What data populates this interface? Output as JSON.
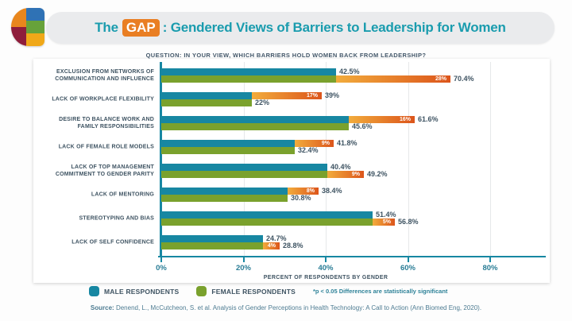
{
  "header": {
    "title_prefix": "The",
    "title_highlight": "GAP",
    "title_suffix": ": Gendered Views of Barriers to Leadership for Women"
  },
  "question": "QUESTION: IN YOUR VIEW, WHICH BARRIERS HOLD WOMEN BACK FROM LEADERSHIP?",
  "chart_data": {
    "type": "bar",
    "orientation": "horizontal",
    "title": "The GAP: Gendered Views of Barriers to Leadership for Women",
    "xlabel": "PERCENT OF RESPONDENTS BY GENDER",
    "xlim": [
      0,
      80
    ],
    "x_ticks": [
      "0%",
      "20%",
      "40%",
      "60%",
      "80%"
    ],
    "grid": true,
    "legend_position": "bottom",
    "series_names": [
      "MALE RESPONDENTS",
      "FEMALE RESPONDENTS"
    ],
    "gap_note": "Orange segment shows the rounded gap between male and female values, drawn on the longer bar",
    "categories": [
      {
        "label": "EXCLUSION FROM NETWORKS OF\nCOMMUNICATION AND INFLUENCE",
        "male": 42.5,
        "female": 70.4,
        "male_label": "42.5%",
        "female_label": "70.4%",
        "gap": 28,
        "gap_label": "28%"
      },
      {
        "label": "LACK OF WORKPLACE FLEXIBILITY",
        "male": 39,
        "female": 22,
        "male_label": "39%",
        "female_label": "22%",
        "gap": 17,
        "gap_label": "17%"
      },
      {
        "label": "DESIRE TO BALANCE WORK AND\nFAMILY RESPONSIBILITIES",
        "male": 61.6,
        "female": 45.6,
        "male_label": "61.6%",
        "female_label": "45.6%",
        "gap": 16,
        "gap_label": "16%"
      },
      {
        "label": "LACK OF FEMALE ROLE MODELS",
        "male": 41.8,
        "female": 32.4,
        "male_label": "41.8%",
        "female_label": "32.4%",
        "gap": 9,
        "gap_label": "9%"
      },
      {
        "label": "LACK OF TOP MANAGEMENT\nCOMMITMENT TO GENDER PARITY",
        "male": 40.4,
        "female": 49.2,
        "male_label": "40.4%",
        "female_label": "49.2%",
        "gap": 9,
        "gap_label": "9%"
      },
      {
        "label": "LACK OF MENTORING",
        "male": 38.4,
        "female": 30.8,
        "male_label": "38.4%",
        "female_label": "30.8%",
        "gap": 8,
        "gap_label": "8%"
      },
      {
        "label": "STEREOTYPING AND BIAS",
        "male": 51.4,
        "female": 56.8,
        "male_label": "51.4%",
        "female_label": "56.8%",
        "gap": 5,
        "gap_label": "5%"
      },
      {
        "label": "LACK OF SELF CONFIDENCE",
        "male": 24.7,
        "female": 28.8,
        "male_label": "24.7%",
        "female_label": "28.8%",
        "gap": 4,
        "gap_label": "4%"
      }
    ]
  },
  "legend": {
    "male_label": "MALE RESPONDENTS",
    "female_label": "FEMALE RESPONDENTS",
    "note": "*p < 0.05 Differences are statistically significant"
  },
  "source": {
    "label": "Source:",
    "text": " Denend, L., McCutcheon, S. et al. Analysis of Gender Perceptions in Health Technology: A Call to Action (Ann Biomed Eng, 2020)."
  },
  "colors": {
    "male": "#1787a2",
    "female": "#7aa12d",
    "gap_gradient_start": "#f2ac3c",
    "gap_gradient_end": "#dc551b",
    "title_teal": "#1a9cae",
    "gap_box_orange": "#e97e23",
    "text_dark": "#3e5362"
  }
}
